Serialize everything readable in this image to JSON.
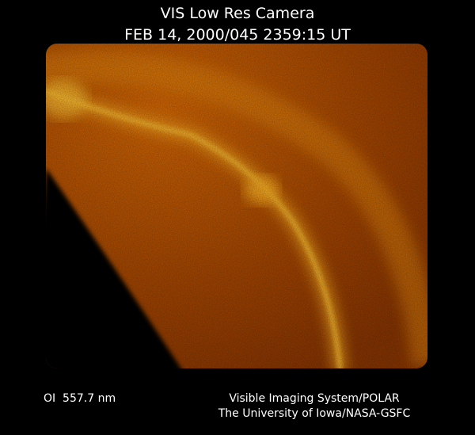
{
  "header": {
    "title": "VIS Low Res Camera",
    "timestamp": "FEB 14, 2000/045 2359:15 UT"
  },
  "footer": {
    "filter": "OI  557.7 nm",
    "credit_line_1": "Visible Imaging System/POLAR",
    "credit_line_2": "The University of Iowa/NASA-GSFC"
  }
}
